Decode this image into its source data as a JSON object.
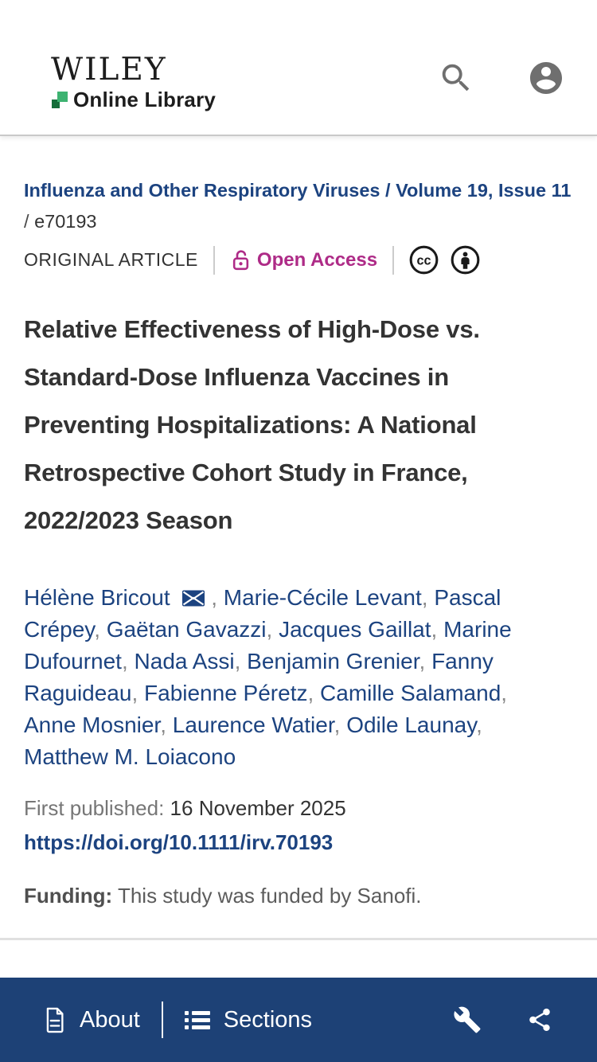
{
  "colors": {
    "link_navy": "#1c4380",
    "bar_navy": "#1d4176",
    "open_access_magenta": "#ae2b87",
    "text_dark": "#333333",
    "text_gray": "#767676",
    "icon_gray": "#6f6f6f",
    "logo_green_light": "#3db371",
    "logo_green_dark": "#156d39"
  },
  "header": {
    "brand": "WILEY",
    "brand_sub": "Online Library"
  },
  "breadcrumb": {
    "journal": "Influenza and Other Respiratory Viruses",
    "separator1": "/",
    "volume_issue": "Volume 19, Issue 11",
    "separator2": "/",
    "article_id": "e70193"
  },
  "meta": {
    "article_type": "ORIGINAL ARTICLE",
    "open_access_label": "Open Access",
    "cc_text": "cc"
  },
  "article": {
    "title": "Relative Effectiveness of High-Dose vs. Standard-Dose Influenza Vaccines in Preventing Hospitalizations: A National Retrospective Cohort Study in France, 2022/2023 Season",
    "authors": [
      {
        "name": "Hélène Bricout",
        "has_email": true
      },
      {
        "name": "Marie-Cécile Levant"
      },
      {
        "name": "Pascal Crépey"
      },
      {
        "name": "Gaëtan Gavazzi"
      },
      {
        "name": "Jacques Gaillat"
      },
      {
        "name": "Marine Dufournet"
      },
      {
        "name": "Nada Assi"
      },
      {
        "name": "Benjamin Grenier"
      },
      {
        "name": "Fanny Raguideau"
      },
      {
        "name": "Fabienne Péretz"
      },
      {
        "name": "Camille Salamand"
      },
      {
        "name": "Anne Mosnier"
      },
      {
        "name": "Laurence Watier"
      },
      {
        "name": "Odile Launay"
      },
      {
        "name": "Matthew M. Loiacono"
      }
    ],
    "first_published_label": "First published:",
    "first_published_date": "16 November 2025",
    "doi_url": "https://doi.org/10.1111/irv.70193",
    "funding_label": "Funding:",
    "funding_text": "This study was funded by Sanofi."
  },
  "toolbar": {
    "about_label": "About",
    "sections_label": "Sections"
  }
}
